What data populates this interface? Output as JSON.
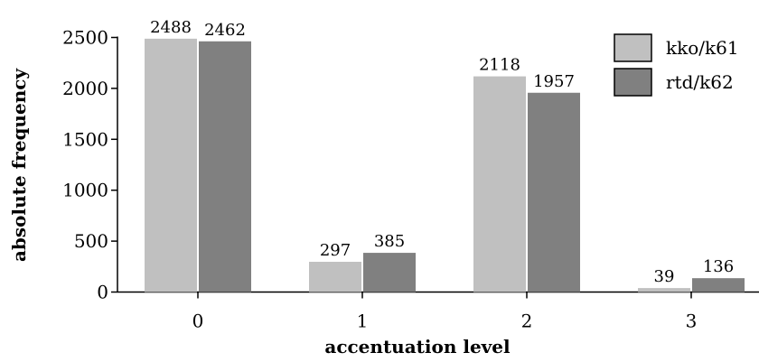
{
  "chart_data": {
    "type": "bar",
    "categories": [
      "0",
      "1",
      "2",
      "3"
    ],
    "series": [
      {
        "name": "kko/k61",
        "values": [
          2488,
          297,
          2118,
          39
        ],
        "color": "#c0c0c0"
      },
      {
        "name": "rtd/k62",
        "values": [
          2462,
          385,
          1957,
          136
        ],
        "color": "#808080"
      }
    ],
    "xlabel": "accentuation level",
    "ylabel": "absolute frequency",
    "ylim": [
      0,
      2500
    ],
    "yticks": [
      0,
      500,
      1000,
      1500,
      2000,
      2500
    ],
    "grid": false,
    "legend_position": "top-right"
  }
}
